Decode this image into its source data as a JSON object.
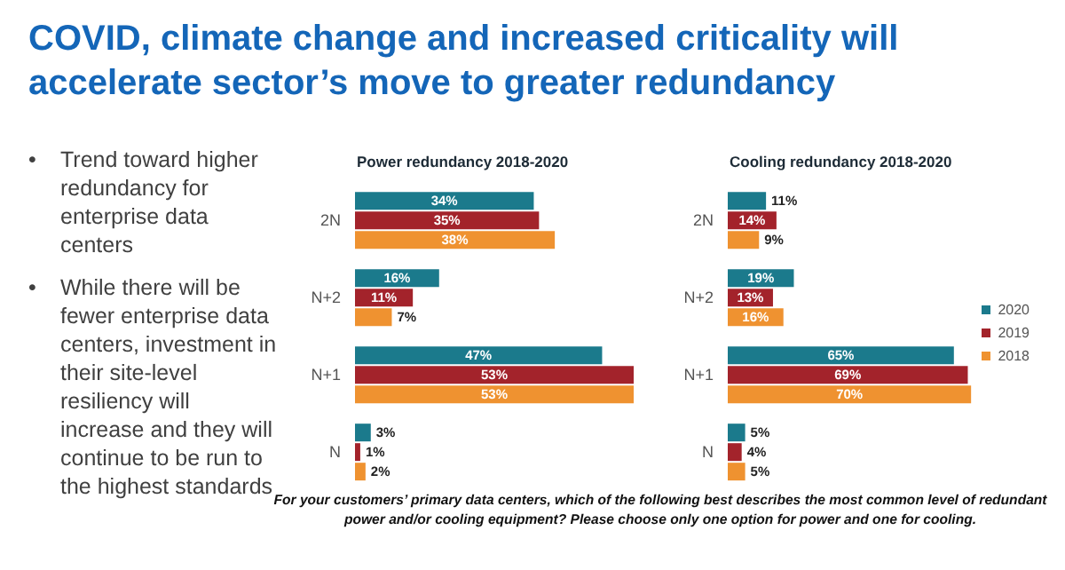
{
  "chart_data": [
    {
      "type": "other",
      "title": "COVID, climate change and increased criticality will accelerate sector’s move to greater redundancy",
      "annotations": [
        "• Trend toward higher redundancy for enterprise data centers",
        "• While there will be fewer enterprise data centers, investment in their site-level resiliency will increase and they will continue to be run to the highest standards"
      ]
    },
    {
      "type": "bar",
      "orientation": "horizontal",
      "title": "Power redundancy 2018-2020",
      "categories": [
        "2N",
        "N+2",
        "N+1",
        "N"
      ],
      "series": [
        {
          "color": "#1b7a8c",
          "values": [
            34,
            16,
            47,
            3
          ],
          "value_labels": [
            "34%",
            "16%",
            "47%",
            "3%"
          ]
        },
        {
          "color": "#a3232b",
          "values": [
            35,
            11,
            53,
            1
          ],
          "value_labels": [
            "35%",
            "11%",
            "53%",
            "1%"
          ]
        },
        {
          "color": "#ef9230",
          "values": [
            38,
            7,
            53,
            2
          ],
          "value_labels": [
            "38%",
            "7%",
            "53%",
            "2%"
          ]
        }
      ],
      "tick_labels": "y",
      "legend": false,
      "annotations": [
        "For your customers’ primary data centers, which of the following best describes the most common level of redundant power and/or cooling equipment? Please choose only one option for power and one for cooling."
      ]
    },
    {
      "type": "bar",
      "orientation": "horizontal",
      "title": "Cooling redundancy 2018-2020",
      "categories": [
        "2N",
        "N+2",
        "N+1",
        "N"
      ],
      "series": [
        {
          "name": "2020",
          "color": "#1b7a8c",
          "values": [
            11,
            19,
            65,
            5
          ],
          "value_labels": [
            "11%",
            "19%",
            "65%",
            "5%"
          ]
        },
        {
          "name": "2019",
          "color": "#a3232b",
          "values": [
            14,
            13,
            69,
            4
          ],
          "value_labels": [
            "14%",
            "13%",
            "69%",
            "4%"
          ]
        },
        {
          "name": "2018",
          "color": "#ef9230",
          "values": [
            9,
            16,
            70,
            5
          ],
          "value_labels": [
            "9%",
            "16%",
            "70%",
            "5%"
          ]
        }
      ],
      "tick_labels": "y",
      "legend": "right"
    }
  ]
}
